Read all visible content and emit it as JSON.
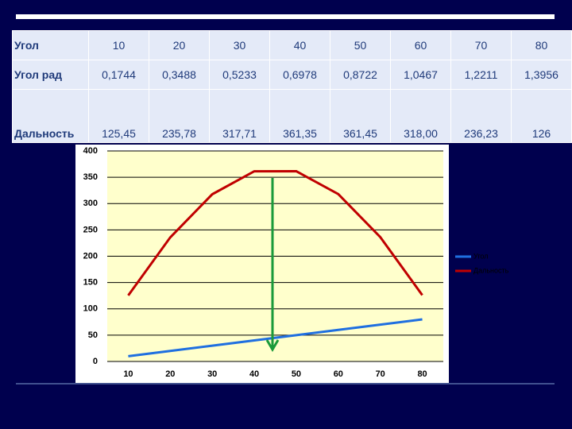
{
  "table": {
    "rows": [
      [
        "Угол",
        "10",
        "20",
        "30",
        "40",
        "50",
        "60",
        "70",
        "80"
      ],
      [
        "Угол рад",
        "0,1744",
        "0,3488",
        "0,5233",
        "0,6978",
        "0,8722",
        "1,0467",
        "1,2211",
        "1,3956"
      ],
      [
        "Дальность",
        "125,45",
        "235,78",
        "317,71",
        "361,35",
        "361,45",
        "318,00",
        "236,23",
        "126"
      ]
    ]
  },
  "chart_data": {
    "type": "line",
    "categories": [
      "10",
      "20",
      "30",
      "40",
      "50",
      "60",
      "70",
      "80"
    ],
    "series": [
      {
        "name": "Угол",
        "color": "#1f6fe0",
        "values": [
          10,
          20,
          30,
          40,
          50,
          60,
          70,
          80
        ]
      },
      {
        "name": "Дальность",
        "color": "#c00000",
        "values": [
          125.45,
          235.78,
          317.71,
          361.35,
          361.45,
          318.0,
          236.23,
          126
        ]
      }
    ],
    "ylim": [
      0,
      400
    ],
    "yticks": [
      0,
      50,
      100,
      150,
      200,
      250,
      300,
      350,
      400
    ],
    "grid": true,
    "legend": "right"
  }
}
